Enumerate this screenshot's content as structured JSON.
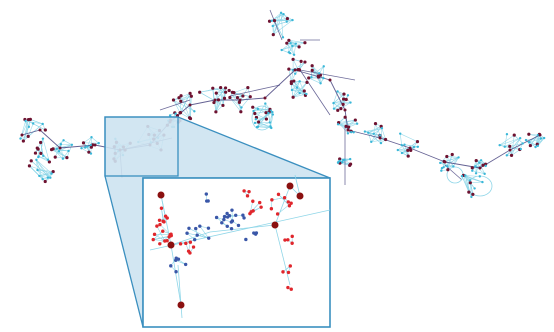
{
  "colors": {
    "background": "#ffffff",
    "edge_light": "#8fd6e8",
    "edge_dark": "#3d3a78",
    "node_cyan": "#3ab7d8",
    "node_dark": "#6e1230",
    "zoom_fill": "#cde3f1",
    "zoom_stroke": "#3a8fbf",
    "inset_red": "#e0262c",
    "inset_blue": "#3a57a8",
    "inset_dark": "#8a1010"
  },
  "figure": {
    "kind": "network graph with zoomed inset",
    "text_labels": []
  }
}
